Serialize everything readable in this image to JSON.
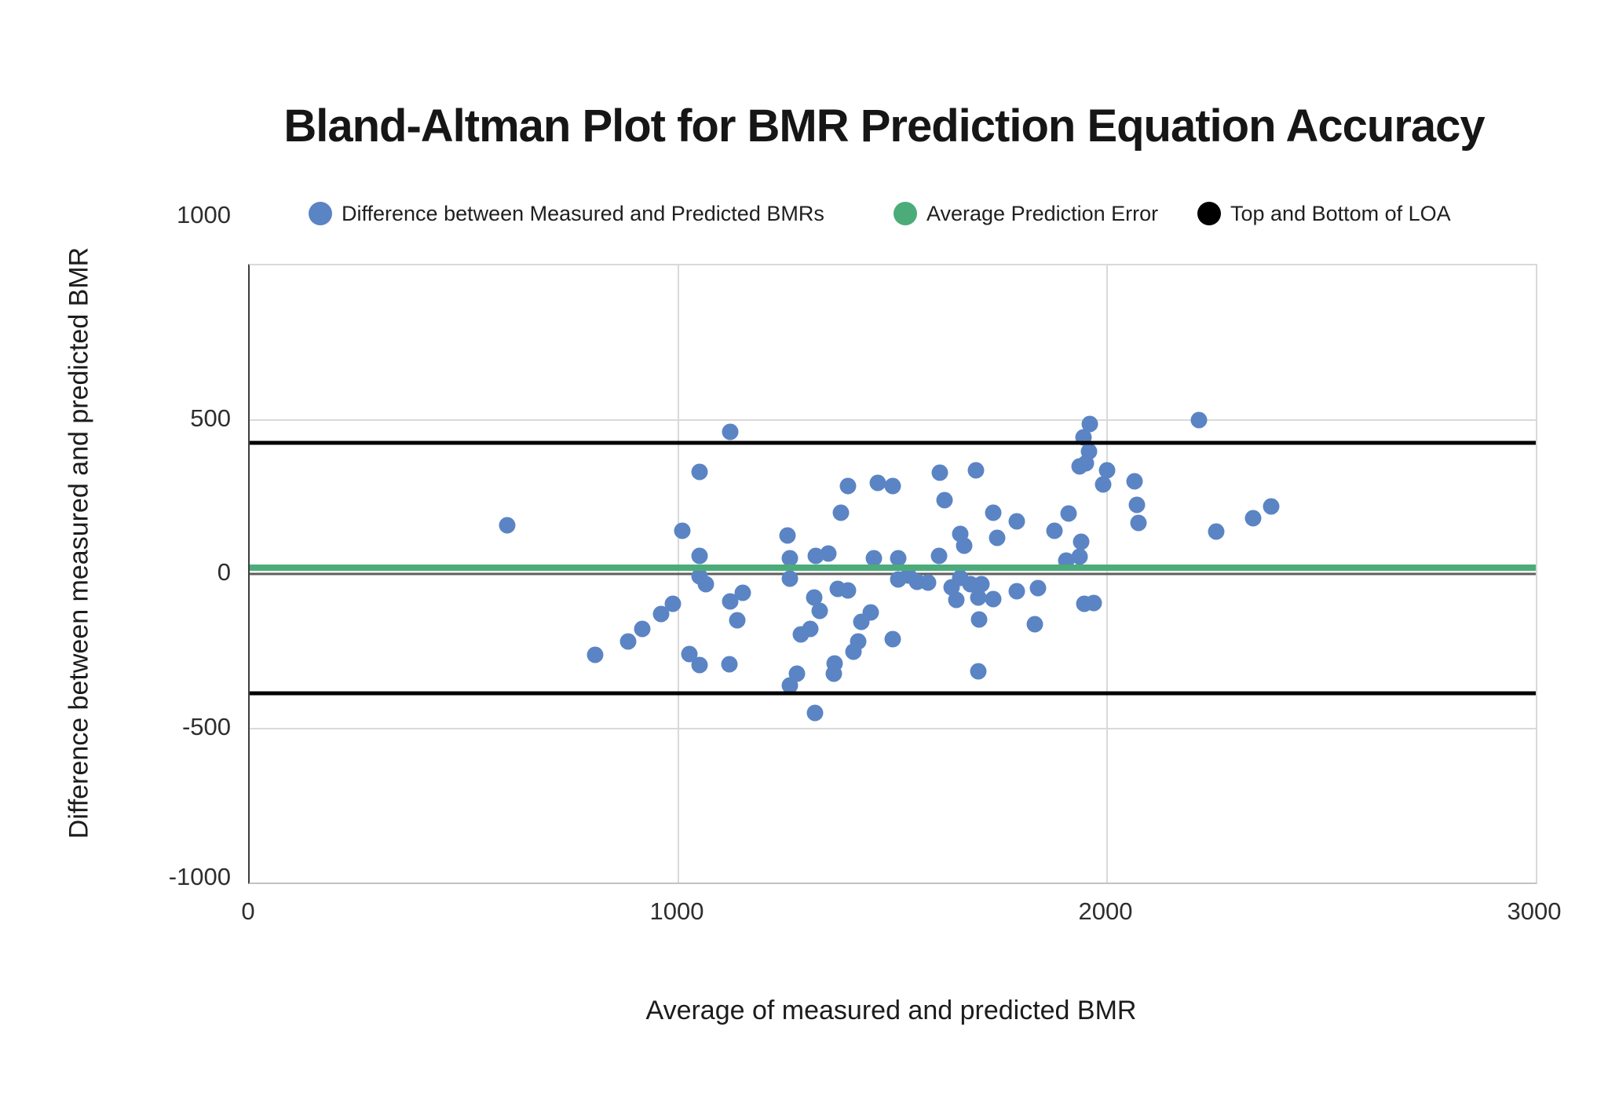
{
  "title": "Bland-Altman Plot for BMR Prediction Equation Accuracy",
  "legend": [
    {
      "label": "Difference between Measured and Predicted BMRs",
      "color": "#5b84c4"
    },
    {
      "label": "Average Prediction Error",
      "color": "#4bac7a"
    },
    {
      "label": "Top and Bottom of LOA",
      "color": "#000000"
    }
  ],
  "chart_data": {
    "type": "scatter",
    "title": "Bland-Altman Plot for BMR Prediction Equation Accuracy",
    "xlabel": "Average of measured and predicted BMR",
    "ylabel": "Difference between measured and predicted BMR",
    "xlim": [
      0,
      3000
    ],
    "ylim": [
      -1000,
      1000
    ],
    "x_ticks": [
      0,
      1000,
      2000,
      3000
    ],
    "y_ticks": [
      1000,
      500,
      0,
      -500,
      -1000
    ],
    "grid": true,
    "legend_position": "top",
    "series": [
      {
        "name": "Difference between Measured and Predicted BMRs",
        "type": "scatter",
        "color": "#5b84c4",
        "points": [
          [
            600,
            157
          ],
          [
            1010,
            139
          ],
          [
            1050,
            332
          ],
          [
            1050,
            58
          ],
          [
            1120,
            460
          ],
          [
            1254,
            124
          ],
          [
            1260,
            51
          ],
          [
            1395,
            286
          ],
          [
            1380,
            198
          ],
          [
            1465,
            296
          ],
          [
            1500,
            284
          ],
          [
            1610,
            327
          ],
          [
            1620,
            238
          ],
          [
            1695,
            337
          ],
          [
            1735,
            198
          ],
          [
            1743,
            117
          ],
          [
            1790,
            170
          ],
          [
            1657,
            130
          ],
          [
            1666,
            91
          ],
          [
            1878,
            140
          ],
          [
            1910,
            195
          ],
          [
            1960,
            486
          ],
          [
            1945,
            443
          ],
          [
            1958,
            397
          ],
          [
            1950,
            359
          ],
          [
            1935,
            349
          ],
          [
            2000,
            337
          ],
          [
            1990,
            291
          ],
          [
            1940,
            104
          ],
          [
            1935,
            55
          ],
          [
            1905,
            43
          ],
          [
            2215,
            499
          ],
          [
            2065,
            299
          ],
          [
            2070,
            223
          ],
          [
            2073,
            165
          ],
          [
            2255,
            137
          ],
          [
            2340,
            180
          ],
          [
            2383,
            220
          ],
          [
            1050,
            -8
          ],
          [
            1065,
            -32
          ],
          [
            987,
            -97
          ],
          [
            960,
            -131
          ],
          [
            915,
            -177
          ],
          [
            882,
            -220
          ],
          [
            806,
            -261
          ],
          [
            1025,
            -260
          ],
          [
            1049,
            -296
          ],
          [
            1119,
            -293
          ],
          [
            1120,
            -89
          ],
          [
            1150,
            -61
          ],
          [
            1137,
            -149
          ],
          [
            1260,
            -362
          ],
          [
            1260,
            -15
          ],
          [
            1316,
            -76
          ],
          [
            1330,
            -119
          ],
          [
            1372,
            -48
          ],
          [
            1396,
            -53
          ],
          [
            1449,
            -124
          ],
          [
            1427,
            -154
          ],
          [
            1285,
            -197
          ],
          [
            1308,
            -177
          ],
          [
            1420,
            -218
          ],
          [
            1409,
            -253
          ],
          [
            1365,
            -289
          ],
          [
            1362,
            -324
          ],
          [
            1277,
            -322
          ],
          [
            1500,
            -210
          ],
          [
            1318,
            -450
          ],
          [
            1700,
            -316
          ],
          [
            1513,
            -18
          ],
          [
            1536,
            -5
          ],
          [
            1557,
            -25
          ],
          [
            1582,
            -29
          ],
          [
            1637,
            -42
          ],
          [
            1648,
            -83
          ],
          [
            1657,
            -13
          ],
          [
            1682,
            -32
          ],
          [
            1707,
            -33
          ],
          [
            1700,
            -76
          ],
          [
            1735,
            -81
          ],
          [
            1701,
            -147
          ],
          [
            1790,
            -56
          ],
          [
            1838,
            -46
          ],
          [
            1832,
            -164
          ],
          [
            1947,
            -96
          ],
          [
            1969,
            -94
          ],
          [
            1320,
            58
          ],
          [
            1350,
            66
          ],
          [
            1456,
            51
          ],
          [
            1513,
            51
          ],
          [
            1608,
            58
          ]
        ]
      },
      {
        "name": "Average Prediction Error",
        "type": "hline",
        "color": "#4bac7a",
        "values": [
          20
        ]
      },
      {
        "name": "Top and Bottom of LOA",
        "type": "hline",
        "color": "#000000",
        "values": [
          425,
          -387
        ]
      }
    ]
  }
}
